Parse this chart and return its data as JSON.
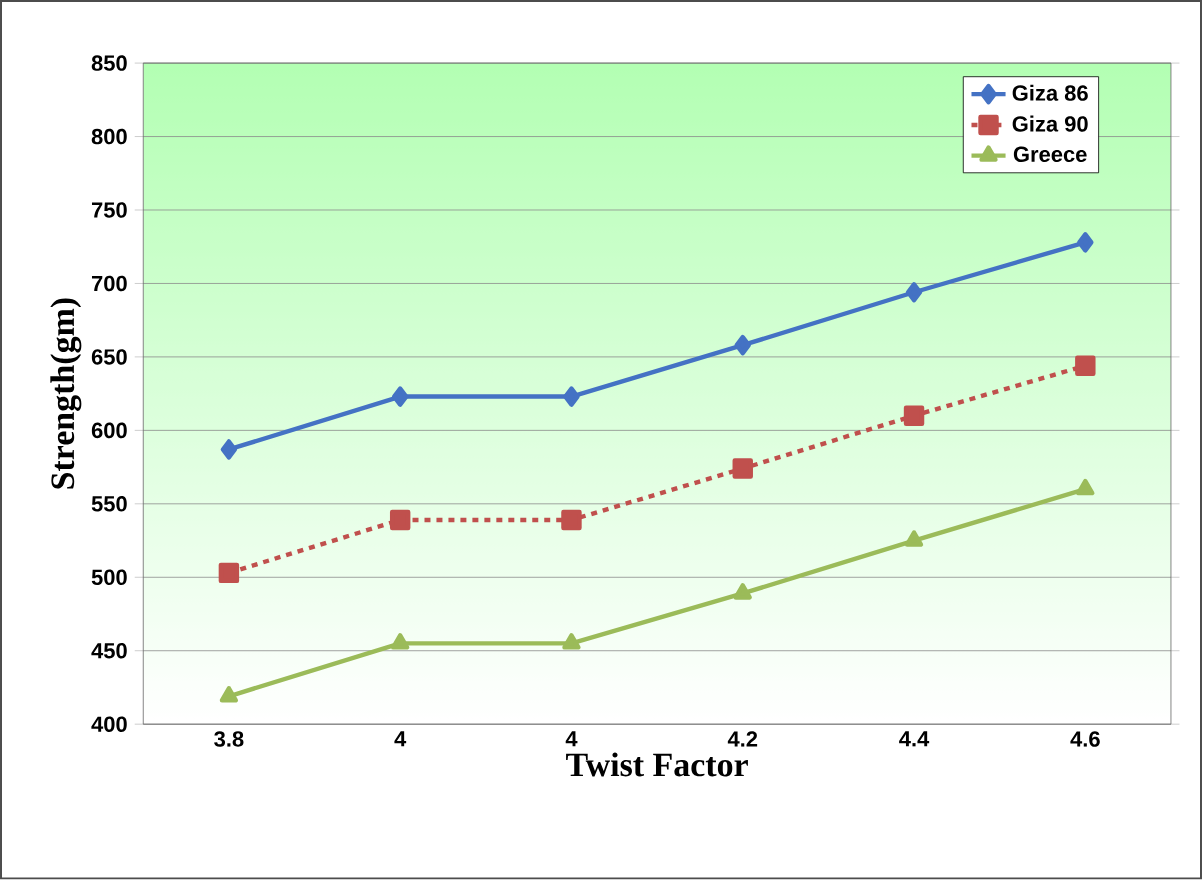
{
  "chart_data": {
    "type": "line",
    "xlabel": "Twist Factor",
    "ylabel": "Strength(gm)",
    "categories": [
      "3.8",
      "4",
      "4",
      "4.2",
      "4.4",
      "4.6"
    ],
    "series": [
      {
        "name": "Giza 86",
        "color": "#4472c4",
        "marker": "diamond",
        "line_style": "solid",
        "values": [
          587,
          623,
          623,
          658,
          694,
          728
        ]
      },
      {
        "name": "Giza 90",
        "color": "#c0504d",
        "marker": "square",
        "line_style": "dashed",
        "values": [
          503,
          539,
          539,
          574,
          610,
          644
        ]
      },
      {
        "name": "Greece",
        "color": "#9bbb59",
        "marker": "triangle",
        "line_style": "solid",
        "values": [
          419,
          455,
          455,
          489,
          525,
          560
        ]
      }
    ],
    "ylim": [
      400,
      850
    ],
    "yticks": [
      400,
      450,
      500,
      550,
      600,
      650,
      700,
      750,
      800,
      850
    ],
    "grid": "y",
    "legend": "top right"
  }
}
